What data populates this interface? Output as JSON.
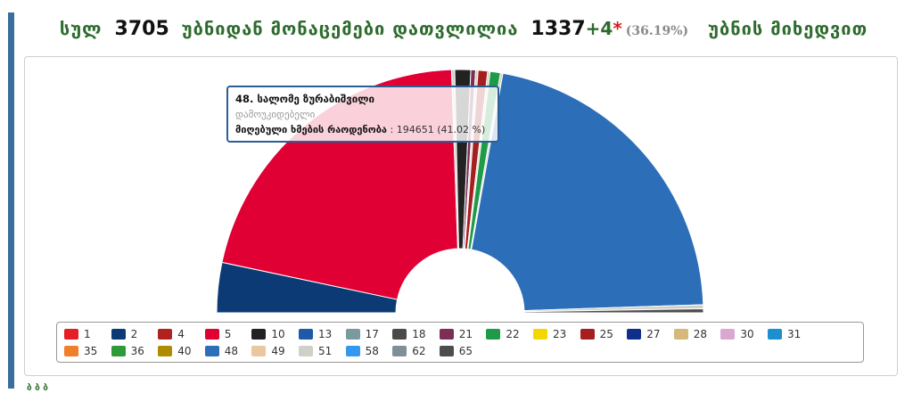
{
  "header": {
    "prefix": "სულ",
    "total": "3705",
    "middle": "უბნიდან მონაცემები დათვლილია",
    "counted": "1337",
    "plus": "+4",
    "star": "*",
    "pct": "(36.19%)",
    "suffix": "უბნის მიხედვით"
  },
  "tooltip": {
    "name": "48. სალომე ზურაბიშვილი",
    "sub": "დამოუკიდებელი",
    "votes_label": "მიღებული ხმების რაოდენობა",
    "votes_value": ": 194651 (41.02 %)"
  },
  "legend": [
    {
      "label": "1",
      "color": "#e31e24"
    },
    {
      "label": "2",
      "color": "#0b3a75"
    },
    {
      "label": "4",
      "color": "#b1221f"
    },
    {
      "label": "5",
      "color": "#e00034"
    },
    {
      "label": "10",
      "color": "#222222"
    },
    {
      "label": "13",
      "color": "#1d5aa8"
    },
    {
      "label": "17",
      "color": "#7a9aa0"
    },
    {
      "label": "18",
      "color": "#4a4a4a"
    },
    {
      "label": "21",
      "color": "#7d2e55"
    },
    {
      "label": "22",
      "color": "#1f9a48"
    },
    {
      "label": "23",
      "color": "#f4d600"
    },
    {
      "label": "25",
      "color": "#a51f1f"
    },
    {
      "label": "27",
      "color": "#0e2f8a"
    },
    {
      "label": "28",
      "color": "#d6b87a"
    },
    {
      "label": "30",
      "color": "#d8a8d0"
    },
    {
      "label": "31",
      "color": "#1c8fd0"
    },
    {
      "label": "35",
      "color": "#f07f2a"
    },
    {
      "label": "36",
      "color": "#2f9a3a"
    },
    {
      "label": "40",
      "color": "#b08a00"
    },
    {
      "label": "48",
      "color": "#2c6eb8"
    },
    {
      "label": "49",
      "color": "#e9c8a0"
    },
    {
      "label": "51",
      "color": "#d0d0c8"
    },
    {
      "label": "58",
      "color": "#3399f0"
    },
    {
      "label": "62",
      "color": "#7f8f99"
    },
    {
      "label": "65",
      "color": "#4d4d4d"
    }
  ],
  "chart_data": {
    "type": "pie",
    "style": "semicircle-donut",
    "unit": "%",
    "slices": [
      {
        "label": "2",
        "value": 6.3,
        "color": "#0b3a75"
      },
      {
        "label": "5",
        "value": 40.0,
        "color": "#e00034"
      },
      {
        "label": "18",
        "value": 0.4,
        "color": "#d0d0c8"
      },
      {
        "label": "10",
        "value": 2.0,
        "color": "#222222"
      },
      {
        "label": "21",
        "value": 0.6,
        "color": "#7d2e55"
      },
      {
        "label": "51",
        "value": 0.3,
        "color": "#d0d0c8"
      },
      {
        "label": "25",
        "value": 1.2,
        "color": "#a51f1f"
      },
      {
        "label": "17",
        "value": 0.3,
        "color": "#d0d0c8"
      },
      {
        "label": "22",
        "value": 1.3,
        "color": "#1f9a48"
      },
      {
        "label": "62",
        "value": 0.3,
        "color": "#d0d0c8"
      },
      {
        "label": "48",
        "value": 41.02,
        "color": "#2c6eb8"
      },
      {
        "label": "49",
        "value": 0.5,
        "color": "#d0d0c8"
      },
      {
        "label": "65",
        "value": 0.5,
        "color": "#4d4d4d"
      }
    ]
  },
  "footer_text": "ბ ბ ბ"
}
